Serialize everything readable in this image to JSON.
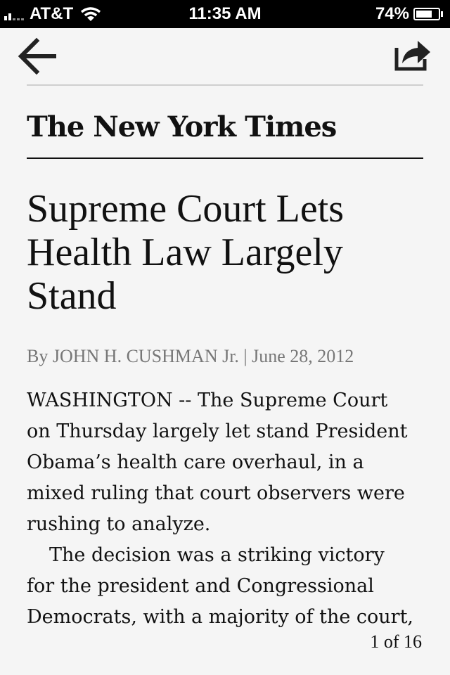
{
  "status_bar": {
    "carrier": "AT&T",
    "time": "11:35 AM",
    "battery_percent": "74%",
    "battery_level": 0.74,
    "signal_bars": 2
  },
  "nav": {
    "back_icon": "back-arrow-icon",
    "share_icon": "share-icon"
  },
  "masthead": "The New York Times",
  "article": {
    "headline": "Supreme Court Lets Health Law Largely Stand",
    "byline": "By JOHN H. CUSHMAN Jr. | June 28, 2012",
    "paragraph_1_lines": [
      "WASHINGTON -- The Supreme Court",
      "on Thursday largely let stand President",
      "Obama’s health care overhaul, in a",
      "mixed ruling that court observers were",
      "rushing to analyze."
    ],
    "paragraph_2_lines": [
      "The decision was a striking victory",
      "for the president and Congressional",
      "Democrats, with a majority of the court,"
    ]
  },
  "pagination": "1 of 16"
}
